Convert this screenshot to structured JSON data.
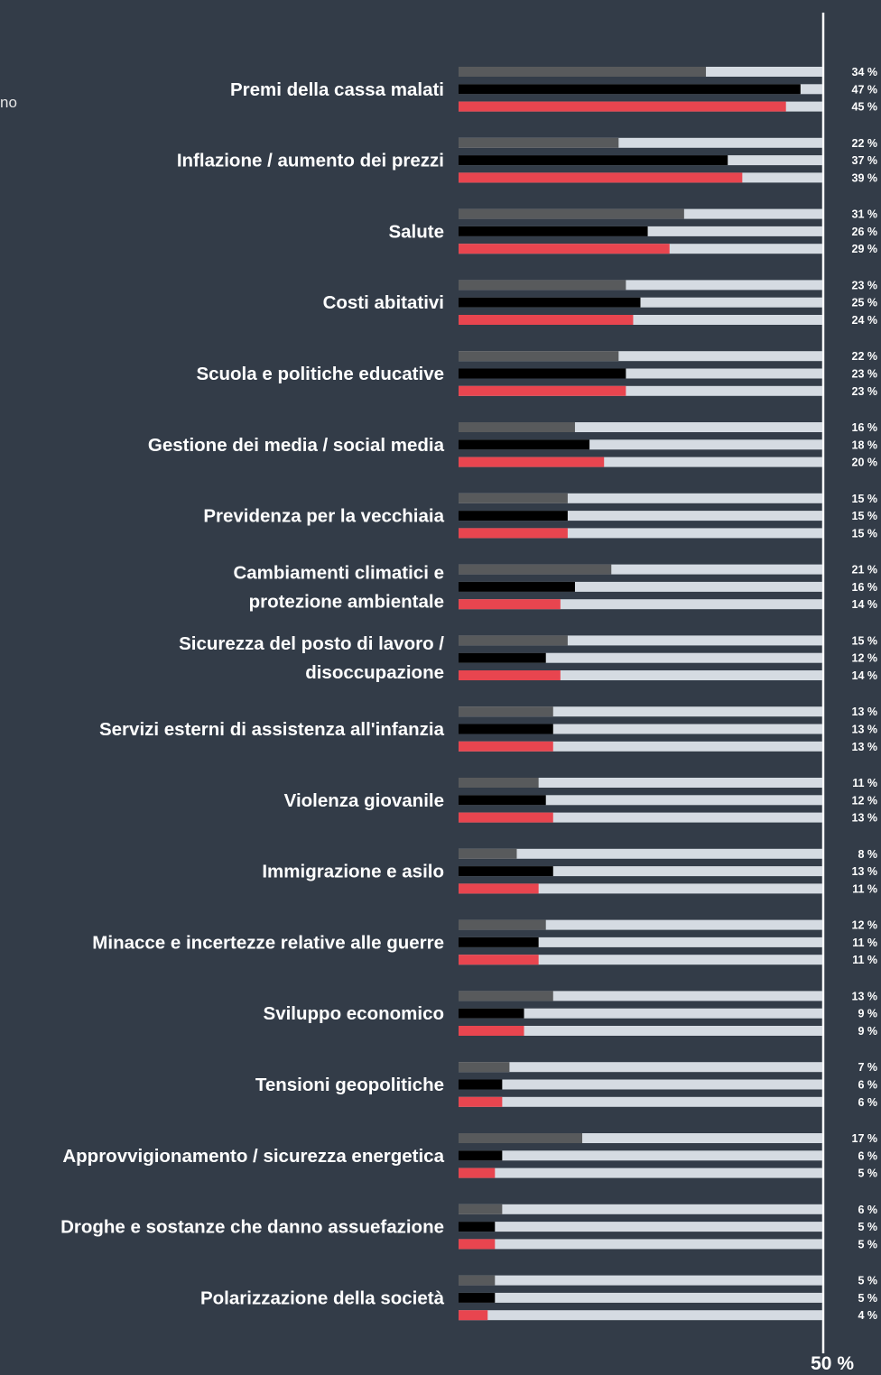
{
  "chart_data": {
    "type": "bar",
    "orientation": "horizontal",
    "series_colors": [
      "#585a5c",
      "#000000",
      "#e8454f"
    ],
    "track_color": "#d5dbe2",
    "background": "#333c48",
    "xlim": [
      0,
      50
    ],
    "axis_max_label": "50 %",
    "unit": "%",
    "side_note": "no",
    "categories": [
      "Premi della cassa malati",
      "Inflazione / aumento dei prezzi",
      "Salute",
      "Costi abitativi",
      "Scuola e politiche educative",
      "Gestione dei media / social media",
      "Previdenza per la vecchiaia",
      "Cambiamenti climatici e\nprotezione ambientale",
      "Sicurezza del posto di lavoro /\ndisoccupazione",
      "Servizi esterni di assistenza all'infanzia",
      "Violenza giovanile",
      "Immigrazione e asilo",
      "Minacce e incertezze relative alle guerre",
      "Sviluppo economico",
      "Tensioni geopolitiche",
      "Approvvigionamento / sicurezza energetica",
      "Droghe e sostanze che danno assuefazione",
      "Polarizzazione della società"
    ],
    "series": [
      {
        "values": [
          34,
          22,
          31,
          23,
          22,
          16,
          15,
          21,
          15,
          13,
          11,
          8,
          12,
          13,
          7,
          17,
          6,
          5
        ]
      },
      {
        "values": [
          47,
          37,
          26,
          25,
          23,
          18,
          15,
          16,
          12,
          13,
          12,
          13,
          11,
          9,
          6,
          6,
          5,
          5
        ]
      },
      {
        "values": [
          45,
          39,
          29,
          24,
          23,
          20,
          15,
          14,
          14,
          13,
          13,
          11,
          11,
          9,
          6,
          5,
          5,
          4
        ]
      }
    ]
  }
}
